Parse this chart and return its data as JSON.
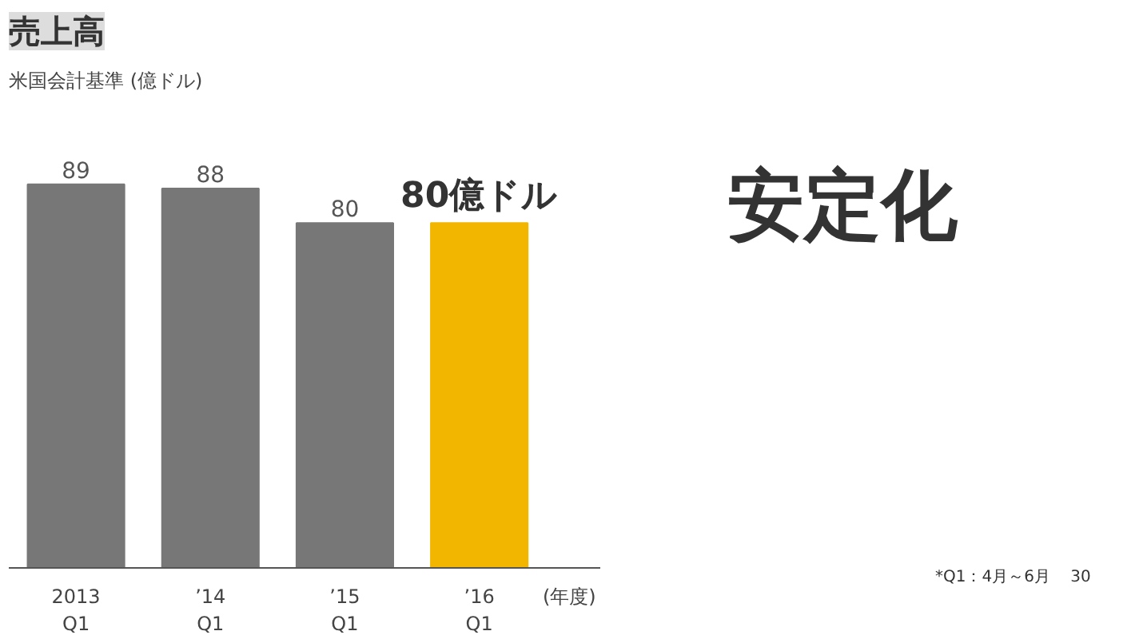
{
  "chart_data": {
    "type": "bar",
    "title": "売上高",
    "subtitle": "米国会計基準",
    "ylabel": "(億ドル)",
    "xlabel": "(年度)",
    "categories": [
      "2013\nQ1",
      "’14\nQ1",
      "’15\nQ1",
      "’16\nQ1"
    ],
    "values": [
      89,
      88,
      80,
      80
    ],
    "colors": [
      "#777777",
      "#777777",
      "#777777",
      "#f2b600"
    ],
    "value_labels": [
      "89",
      "88",
      "80",
      "80億ドル"
    ],
    "annotations": [
      "安定化",
      "*Q1：4月～6月",
      "30"
    ]
  }
}
